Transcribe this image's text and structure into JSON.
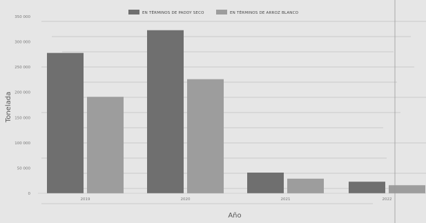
{
  "chart_data": {
    "type": "bar",
    "title": "",
    "xlabel": "Año",
    "ylabel": "Tonelada",
    "categories": [
      "2019",
      "2020",
      "2021",
      "2022"
    ],
    "series": [
      {
        "name": "EN TÉRMINOS DE PADDY SECO",
        "values": [
          278000,
          323000,
          41000,
          23000
        ]
      },
      {
        "name": "EN TÉRMINOS DE ARROZ BLANCO",
        "values": [
          191000,
          226000,
          29000,
          16000
        ]
      }
    ],
    "ylim": [
      0,
      350000
    ],
    "yticks": [
      "0",
      "50 000",
      "100 000",
      "150 000",
      "200 000",
      "250 000",
      "300 000",
      "350 000"
    ],
    "grid": false,
    "legend": "top-center",
    "colors": [
      "#6f6f6f",
      "#9d9d9d"
    ]
  }
}
